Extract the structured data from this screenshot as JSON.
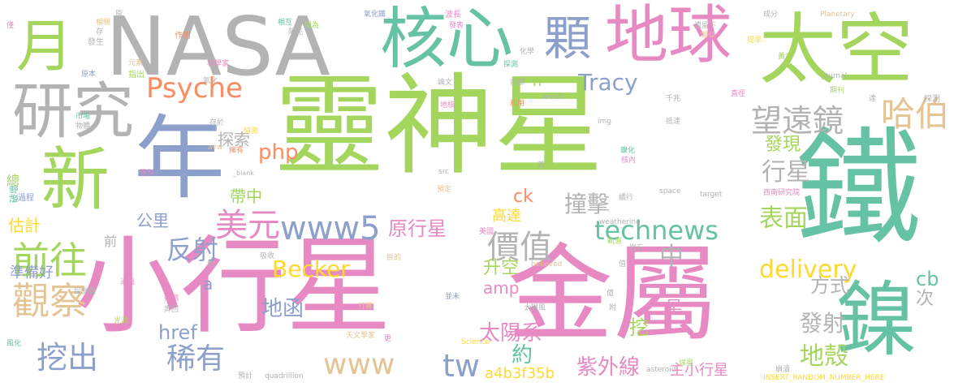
{
  "palette": {
    "green": "#a4d65e",
    "pink": "#e78ac3",
    "teal": "#66c2a5",
    "gray": "#b3b3b3",
    "blue": "#8da0cb",
    "orange": "#fc8d62",
    "gold": "#ffd92f",
    "tan": "#e5c494"
  },
  "words": [
    {
      "id": "w-lingshenxing",
      "text": "靈神星",
      "color": "green"
    },
    {
      "id": "w-xiaoxingxing",
      "text": "小行星",
      "color": "pink"
    },
    {
      "id": "w-jinshu",
      "text": "金屬",
      "color": "pink"
    },
    {
      "id": "w-tie",
      "text": "鐵",
      "color": "teal"
    },
    {
      "id": "w-nasa",
      "text": "NASA",
      "color": "gray"
    },
    {
      "id": "w-taikong",
      "text": "太空",
      "color": "green"
    },
    {
      "id": "w-diqiu",
      "text": "地球",
      "color": "pink"
    },
    {
      "id": "w-hexin",
      "text": "核心",
      "color": "teal"
    },
    {
      "id": "w-nian",
      "text": "年",
      "color": "blue"
    },
    {
      "id": "w-xin",
      "text": "新",
      "color": "green"
    },
    {
      "id": "w-nie",
      "text": "鎳",
      "color": "teal"
    },
    {
      "id": "w-yanjiu",
      "text": "研究",
      "color": "gray"
    },
    {
      "id": "w-yue",
      "text": "月",
      "color": "green"
    },
    {
      "id": "w-ke",
      "text": "顆",
      "color": "blue"
    },
    {
      "id": "w-psyche",
      "text": "Psyche",
      "color": "orange"
    },
    {
      "id": "w-wangyuanjing",
      "text": "望遠鏡",
      "color": "gray"
    },
    {
      "id": "w-habo",
      "text": "哈伯",
      "color": "tan"
    },
    {
      "id": "w-tracy",
      "text": "Tracy",
      "color": "blue"
    },
    {
      "id": "w-technews",
      "text": "technews",
      "color": "teal"
    },
    {
      "id": "w-www5",
      "text": "www5",
      "color": "blue"
    },
    {
      "id": "w-meiyuan",
      "text": "美元",
      "color": "pink"
    },
    {
      "id": "w-qianwang",
      "text": "前往",
      "color": "green"
    },
    {
      "id": "w-guancha",
      "text": "觀察",
      "color": "tan"
    },
    {
      "id": "w-wachu",
      "text": "挖出",
      "color": "blue"
    },
    {
      "id": "w-xiyou",
      "text": "稀有",
      "color": "blue"
    },
    {
      "id": "w-jiazhi",
      "text": "價值",
      "color": "gray"
    },
    {
      "id": "w-www",
      "text": "www",
      "color": "tan"
    },
    {
      "id": "w-tw",
      "text": "tw",
      "color": "blue"
    },
    {
      "id": "w-delivery",
      "text": "delivery",
      "color": "gold"
    },
    {
      "id": "w-becker",
      "text": "Becker",
      "color": "gold"
    },
    {
      "id": "w-yuanxingxing",
      "text": "原行星",
      "color": "pink"
    },
    {
      "id": "w-xingxing",
      "text": "行星",
      "color": "gray"
    },
    {
      "id": "w-faxian",
      "text": "發現",
      "color": "green"
    },
    {
      "id": "w-zhuangji",
      "text": "撞擊",
      "color": "gray"
    },
    {
      "id": "w-php",
      "text": "php",
      "color": "orange"
    },
    {
      "id": "w-fanshe",
      "text": "反射",
      "color": "blue"
    },
    {
      "id": "w-gongli",
      "text": "公里",
      "color": "blue"
    },
    {
      "id": "w-tansuo",
      "text": "探索",
      "color": "gray"
    },
    {
      "id": "w-daizhong",
      "text": "帶中",
      "color": "green"
    },
    {
      "id": "w-biaomian",
      "text": "表面",
      "color": "green"
    },
    {
      "id": "w-zhong",
      "text": "中",
      "color": "gray"
    },
    {
      "id": "w-shengkong",
      "text": "升空",
      "color": "green"
    },
    {
      "id": "w-fangshi",
      "text": "方式",
      "color": "gray"
    },
    {
      "id": "w-cb",
      "text": "cb",
      "color": "teal"
    },
    {
      "id": "w-ci",
      "text": "次",
      "color": "gray"
    },
    {
      "id": "w-fashe",
      "text": "發射",
      "color": "gray"
    },
    {
      "id": "w-dike",
      "text": "地殼",
      "color": "green"
    },
    {
      "id": "w-taiyangxi",
      "text": "太陽系",
      "color": "pink"
    },
    {
      "id": "w-dihan",
      "text": "地函",
      "color": "blue"
    },
    {
      "id": "w-ziwaixian",
      "text": "紫外線",
      "color": "pink"
    },
    {
      "id": "w-a4b3",
      "text": "a4b3f35b",
      "color": "gold"
    },
    {
      "id": "w-zhuxiaoxingxing",
      "text": "主小行星",
      "color": "pink"
    },
    {
      "id": "w-yue2",
      "text": "約",
      "color": "teal"
    },
    {
      "id": "w-wa",
      "text": "挖",
      "color": "green"
    },
    {
      "id": "w-zao",
      "text": "早",
      "color": "pink"
    },
    {
      "id": "w-amp",
      "text": "amp",
      "color": "pink"
    },
    {
      "id": "w-gaoda",
      "text": "高達",
      "color": "gold"
    },
    {
      "id": "w-ck",
      "text": "ck",
      "color": "orange"
    },
    {
      "id": "w-n",
      "text": "n",
      "color": "green"
    },
    {
      "id": "w-a",
      "text": "a",
      "color": "blue"
    },
    {
      "id": "w-href",
      "text": "href",
      "color": "blue"
    },
    {
      "id": "w-zhunbeihao",
      "text": "準備好",
      "color": "blue"
    },
    {
      "id": "w-guji",
      "text": "估計",
      "color": "gold"
    },
    {
      "id": "w-zong",
      "text": "總",
      "color": "green"
    },
    {
      "id": "w-qian",
      "text": "前",
      "color": "gray"
    },
    {
      "id": "w-pohuai",
      "text": "破壞",
      "color": "teal"
    },
    {
      "id": "w-guocheng",
      "text": "過程",
      "color": "blue"
    },
    {
      "id": "w-shichang",
      "text": "市場",
      "color": "teal"
    },
    {
      "id": "w-wuzhi",
      "text": "物體",
      "color": "gray"
    },
    {
      "id": "w-xiangguan",
      "text": "相關",
      "color": "tan"
    },
    {
      "id": "w-fasheng",
      "text": "發生",
      "color": "gray"
    },
    {
      "id": "w-yuanben",
      "text": "原本",
      "color": "blue"
    },
    {
      "id": "w-zhichu",
      "text": "指出",
      "color": "green"
    },
    {
      "id": "w-yuansu",
      "text": "元素",
      "color": "tan"
    },
    {
      "id": "w-zuoyong",
      "text": "作用",
      "color": "orange"
    },
    {
      "id": "w-kexuejia",
      "text": "科學家",
      "color": "pink"
    },
    {
      "id": "w-yang",
      "text": "陽光",
      "color": "gray"
    },
    {
      "id": "w-yanghua",
      "text": "氧化",
      "color": "gray"
    },
    {
      "id": "w-xianghu",
      "text": "相互",
      "color": "teal"
    },
    {
      "id": "w-chengwei",
      "text": "稱為",
      "color": "green"
    },
    {
      "id": "w-yanghuatie",
      "text": "氧化鐵",
      "color": "blue"
    },
    {
      "id": "w-bochang",
      "text": "波長",
      "color": "pink"
    },
    {
      "id": "w-fabiao",
      "text": "發表",
      "color": "pink"
    },
    {
      "id": "w-yiliuxia",
      "text": "遺留下",
      "color": "gray"
    },
    {
      "id": "w-leisi",
      "text": "類似",
      "color": "tan"
    },
    {
      "id": "w-planetary",
      "text": "Planetary",
      "color": "tan"
    },
    {
      "id": "w-chengfen",
      "text": "成分",
      "color": "gray"
    },
    {
      "id": "w-huaxue",
      "text": "化學",
      "color": "gray"
    },
    {
      "id": "w-tanc",
      "text": "探測",
      "color": "teal"
    },
    {
      "id": "w-journal",
      "text": "Journal",
      "color": "gray"
    },
    {
      "id": "w-tizao",
      "text": "提早",
      "color": "gold"
    },
    {
      "id": "w-huangjin",
      "text": "黃金",
      "color": "green"
    },
    {
      "id": "w-qikan",
      "text": "期刊",
      "color": "green"
    },
    {
      "id": "w-zhijing",
      "text": "直徑",
      "color": "pink"
    },
    {
      "id": "w-tance2",
      "text": "探測",
      "color": "gray"
    },
    {
      "id": "w-da",
      "text": "達",
      "color": "gray"
    },
    {
      "id": "w-lunwen",
      "text": "論文",
      "color": "gray"
    },
    {
      "id": "w-neibu",
      "text": "內部",
      "color": "gray"
    },
    {
      "id": "w-worth",
      "text": "worth",
      "color": "gray"
    },
    {
      "id": "w-liyong",
      "text": "利用",
      "color": "orange"
    },
    {
      "id": "w-diqiu2",
      "text": "地核",
      "color": "pink"
    },
    {
      "id": "w-qianzhao",
      "text": "千兆",
      "color": "gray"
    },
    {
      "id": "w-didasu",
      "text": "抵達",
      "color": "gray"
    },
    {
      "id": "w-img",
      "text": "img",
      "color": "gray"
    },
    {
      "id": "w-cunfang",
      "text": "存於",
      "color": "gray"
    },
    {
      "id": "w-avw",
      "text": "avw",
      "color": "tan"
    },
    {
      "id": "w-yongyou",
      "text": "擁有",
      "color": "orange"
    },
    {
      "id": "w-jiance",
      "text": "偵測",
      "color": "gold"
    },
    {
      "id": "w-jinghua",
      "text": "鎳化",
      "color": "teal"
    },
    {
      "id": "w-henei",
      "text": "核內",
      "color": "pink"
    },
    {
      "id": "w-blank",
      "text": "_blank",
      "color": "gray"
    },
    {
      "id": "w-shou",
      "text": "首",
      "color": "gray"
    },
    {
      "id": "w-tuandui",
      "text": "團隊",
      "color": "pink"
    },
    {
      "id": "w-src",
      "text": "src",
      "color": "gray"
    },
    {
      "id": "w-yuding",
      "text": "預定",
      "color": "tan"
    },
    {
      "id": "w-xuxing",
      "text": "續行",
      "color": "gray"
    },
    {
      "id": "w-space",
      "text": "space",
      "color": "gray"
    },
    {
      "id": "w-target",
      "text": "target",
      "color": "gray"
    },
    {
      "id": "w-xinan",
      "text": "西南研究院",
      "color": "pink"
    },
    {
      "id": "w-weathering",
      "text": "weathering",
      "color": "gray"
    },
    {
      "id": "w-meiguo",
      "text": "美國",
      "color": "pink"
    },
    {
      "id": "w-guidao",
      "text": "軌道",
      "color": "green"
    },
    {
      "id": "w-yanshi",
      "text": "岩石",
      "color": "gray"
    },
    {
      "id": "w-qie",
      "text": "切",
      "color": "gray"
    },
    {
      "id": "w-xishou",
      "text": "吸收",
      "color": "gray"
    },
    {
      "id": "w-mude",
      "text": "目的",
      "color": "tan"
    },
    {
      "id": "w-believed",
      "text": "believed",
      "color": "tan"
    },
    {
      "id": "w-tongguo",
      "text": "通過",
      "color": "pink"
    },
    {
      "id": "w-tanceqi",
      "text": "探測器",
      "color": "gray"
    },
    {
      "id": "w-tuice",
      "text": "推測",
      "color": "pink"
    },
    {
      "id": "w-dasuan",
      "text": "打算",
      "color": "tan"
    },
    {
      "id": "w-bingwei",
      "text": "並未",
      "color": "blue"
    },
    {
      "id": "w-taiyangfeng",
      "text": "太陽風",
      "color": "gray"
    },
    {
      "id": "w-yi",
      "text": "億",
      "color": "gray"
    },
    {
      "id": "w-ben",
      "text": "奔回",
      "color": "gray"
    },
    {
      "id": "w-guangyuan",
      "text": "光源",
      "color": "green"
    },
    {
      "id": "w-tianwenxuejia",
      "text": "天文學家",
      "color": "tan"
    },
    {
      "id": "w-geng",
      "text": "更",
      "color": "pink"
    },
    {
      "id": "w-science",
      "text": "Science",
      "color": "gold"
    },
    {
      "id": "w-fenghua",
      "text": "風化",
      "color": "teal"
    },
    {
      "id": "w-yuji",
      "text": "預計",
      "color": "gray"
    },
    {
      "id": "w-quad",
      "text": "quadrillion",
      "color": "gray"
    },
    {
      "id": "w-asteroid",
      "text": "asteroid",
      "color": "gray"
    },
    {
      "id": "w-jingxing",
      "text": "詳星",
      "color": "green"
    },
    {
      "id": "w-bengta",
      "text": "崩潰",
      "color": "gray"
    },
    {
      "id": "w-insert",
      "text": "INSERT_RANDOM_NUMBER_HERE",
      "color": "gold"
    },
    {
      "id": "w-yuan",
      "text": "原",
      "color": "gray"
    },
    {
      "id": "w-cun",
      "text": "存",
      "color": "gray"
    },
    {
      "id": "w-jing",
      "text": "僅",
      "color": "pink"
    },
    {
      "id": "w-fu",
      "text": "附",
      "color": "gray"
    },
    {
      "id": "w-zhi",
      "text": "值",
      "color": "gray"
    }
  ]
}
